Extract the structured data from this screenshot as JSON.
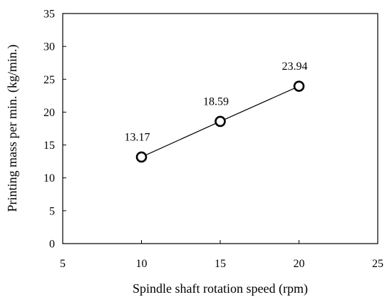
{
  "chart_data": {
    "type": "scatter",
    "xlabel": "Spindle shaft rotation speed (rpm)",
    "ylabel": "Printing mass per min. (kg/min.)",
    "xlim": [
      5,
      25
    ],
    "ylim": [
      0,
      35
    ],
    "xticks": [
      5,
      10,
      15,
      20,
      25
    ],
    "yticks": [
      0,
      5,
      10,
      15,
      20,
      25,
      30,
      35
    ],
    "grid": false,
    "series": [
      {
        "x": [
          10,
          15,
          20
        ],
        "y": [
          13.17,
          18.59,
          23.94
        ],
        "labels": [
          "13.17",
          "18.59",
          "23.94"
        ],
        "marker": "open-circle",
        "line": true,
        "color": "#000000"
      }
    ]
  }
}
